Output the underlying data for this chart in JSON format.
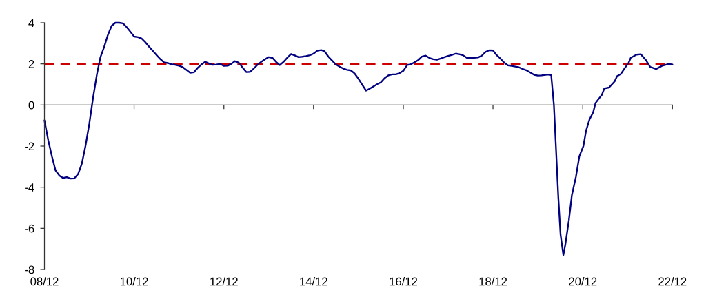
{
  "chart_data": {
    "type": "line",
    "x": [
      "2008-12",
      "2009-01",
      "2009-02",
      "2009-03",
      "2009-04",
      "2009-05",
      "2009-06",
      "2009-07",
      "2009-08",
      "2009-09",
      "2009-10",
      "2009-11",
      "2009-12",
      "2010-01",
      "2010-02",
      "2010-03",
      "2010-04",
      "2010-05",
      "2010-06",
      "2010-07",
      "2010-08",
      "2010-09",
      "2010-10",
      "2010-11",
      "2010-12",
      "2011-01",
      "2011-02",
      "2011-03",
      "2011-04",
      "2011-05",
      "2011-06",
      "2011-07",
      "2011-08",
      "2011-09",
      "2011-10",
      "2011-11",
      "2011-12",
      "2012-01",
      "2012-02",
      "2012-03",
      "2012-04",
      "2012-05",
      "2012-06",
      "2012-07",
      "2012-08",
      "2012-09",
      "2012-10",
      "2012-11",
      "2012-12",
      "2013-01",
      "2013-02",
      "2013-03",
      "2013-04",
      "2013-05",
      "2013-06",
      "2013-07",
      "2013-08",
      "2013-09",
      "2013-10",
      "2013-11",
      "2013-12",
      "2014-01",
      "2014-02",
      "2014-03",
      "2014-04",
      "2014-05",
      "2014-06",
      "2014-07",
      "2014-08",
      "2014-09",
      "2014-10",
      "2014-11",
      "2014-12",
      "2015-01",
      "2015-02",
      "2015-03",
      "2015-04",
      "2015-05",
      "2015-06",
      "2015-07",
      "2015-08",
      "2015-09",
      "2015-10",
      "2015-11",
      "2015-12",
      "2016-01",
      "2016-02",
      "2016-03",
      "2016-04",
      "2016-05",
      "2016-06",
      "2016-07",
      "2016-08",
      "2016-09",
      "2016-10",
      "2016-11",
      "2016-12",
      "2017-01",
      "2017-02",
      "2017-03",
      "2017-04",
      "2017-05",
      "2017-06",
      "2017-07",
      "2017-08",
      "2017-09",
      "2017-10",
      "2017-11",
      "2017-12",
      "2018-01",
      "2018-02",
      "2018-03",
      "2018-04",
      "2018-05",
      "2018-06",
      "2018-07",
      "2018-08",
      "2018-09",
      "2018-10",
      "2018-11",
      "2018-12",
      "2019-01",
      "2019-02",
      "2019-03",
      "2019-04",
      "2019-05",
      "2019-06",
      "2019-07",
      "2019-08",
      "2019-09",
      "2019-10",
      "2019-11",
      "2019-12",
      "2020-01",
      "2020-02",
      "2020-03",
      "2020-03-19",
      "2020-04-10",
      "2020-04-28",
      "2020-05-16",
      "2020-06-03",
      "2020-06-26",
      "2020-07-13",
      "2020-08-10",
      "2020-09-03",
      "2020-10-06",
      "2020-11-03",
      "2020-12-06",
      "2020-12-28",
      "2021-01-25",
      "2021-02-24",
      "2021-03-15",
      "2021-04-10",
      "2021-05-06",
      "2021-05-25",
      "2021-07-03",
      "2021-08-18",
      "2021-09-06",
      "2021-10-06",
      "2021-11-03",
      "2021-12-09",
      "2021-12-27",
      "2022-02-12",
      "2022-03-18",
      "2022-04-27",
      "2022-06-03",
      "2022-07-21",
      "2022-09-06",
      "2022-11-03",
      "2022-12-01"
    ],
    "series": [
      {
        "color": "#000080",
        "values": [
          -0.75,
          -1.72,
          -2.53,
          -3.18,
          -3.43,
          -3.55,
          -3.51,
          -3.58,
          -3.57,
          -3.36,
          -2.86,
          -1.97,
          -0.92,
          0.36,
          1.49,
          2.31,
          2.82,
          3.4,
          3.85,
          4.0,
          4.0,
          3.97,
          3.79,
          3.56,
          3.33,
          3.3,
          3.23,
          3.06,
          2.84,
          2.64,
          2.43,
          2.24,
          2.08,
          2.04,
          1.98,
          1.95,
          1.91,
          1.84,
          1.7,
          1.57,
          1.59,
          1.8,
          1.97,
          2.1,
          2.02,
          1.95,
          1.97,
          2.0,
          1.9,
          1.91,
          2.01,
          2.13,
          2.06,
          1.83,
          1.6,
          1.61,
          1.77,
          1.96,
          2.1,
          2.22,
          2.33,
          2.29,
          2.08,
          1.94,
          2.1,
          2.3,
          2.48,
          2.41,
          2.33,
          2.35,
          2.38,
          2.42,
          2.5,
          2.64,
          2.67,
          2.61,
          2.35,
          2.16,
          1.97,
          1.86,
          1.77,
          1.71,
          1.68,
          1.53,
          1.28,
          0.99,
          0.7,
          0.79,
          0.9,
          1.01,
          1.1,
          1.3,
          1.44,
          1.49,
          1.49,
          1.55,
          1.66,
          1.94,
          1.98,
          2.07,
          2.18,
          2.35,
          2.4,
          2.29,
          2.23,
          2.2,
          2.26,
          2.33,
          2.39,
          2.44,
          2.5,
          2.47,
          2.42,
          2.3,
          2.29,
          2.3,
          2.31,
          2.4,
          2.58,
          2.66,
          2.65,
          2.42,
          2.25,
          2.07,
          1.93,
          1.9,
          1.87,
          1.83,
          1.75,
          1.68,
          1.58,
          1.47,
          1.43,
          1.44,
          1.47,
          1.48,
          1.45,
          0.0,
          -2.25,
          -4.5,
          -6.3,
          -7.3,
          -6.75,
          -5.6,
          -4.4,
          -3.5,
          -2.5,
          -2.0,
          -1.25,
          -0.7,
          -0.35,
          0.1,
          0.3,
          0.5,
          0.8,
          0.85,
          1.15,
          1.4,
          1.5,
          1.75,
          2.05,
          2.3,
          2.45,
          2.47,
          2.2,
          1.85,
          1.75,
          1.9,
          2.0,
          1.97
        ]
      }
    ],
    "xlim": [
      "2008-12",
      "2022-12"
    ],
    "xticks": [
      {
        "value": "2008-12",
        "label": "08/12"
      },
      {
        "value": "2010-12",
        "label": "10/12"
      },
      {
        "value": "2012-12",
        "label": "12/12"
      },
      {
        "value": "2014-12",
        "label": "14/12"
      },
      {
        "value": "2016-12",
        "label": "16/12"
      },
      {
        "value": "2018-12",
        "label": "18/12"
      },
      {
        "value": "2020-12",
        "label": "20/12"
      },
      {
        "value": "2022-12",
        "label": "22/12"
      }
    ],
    "ylim": [
      -8,
      4
    ],
    "yticks": [
      -8,
      -6,
      -4,
      -2,
      0,
      2,
      4
    ],
    "ref_lines": [
      {
        "axis": "y",
        "value": 2,
        "color": "#cc0000",
        "line_style": "dashed"
      }
    ]
  }
}
